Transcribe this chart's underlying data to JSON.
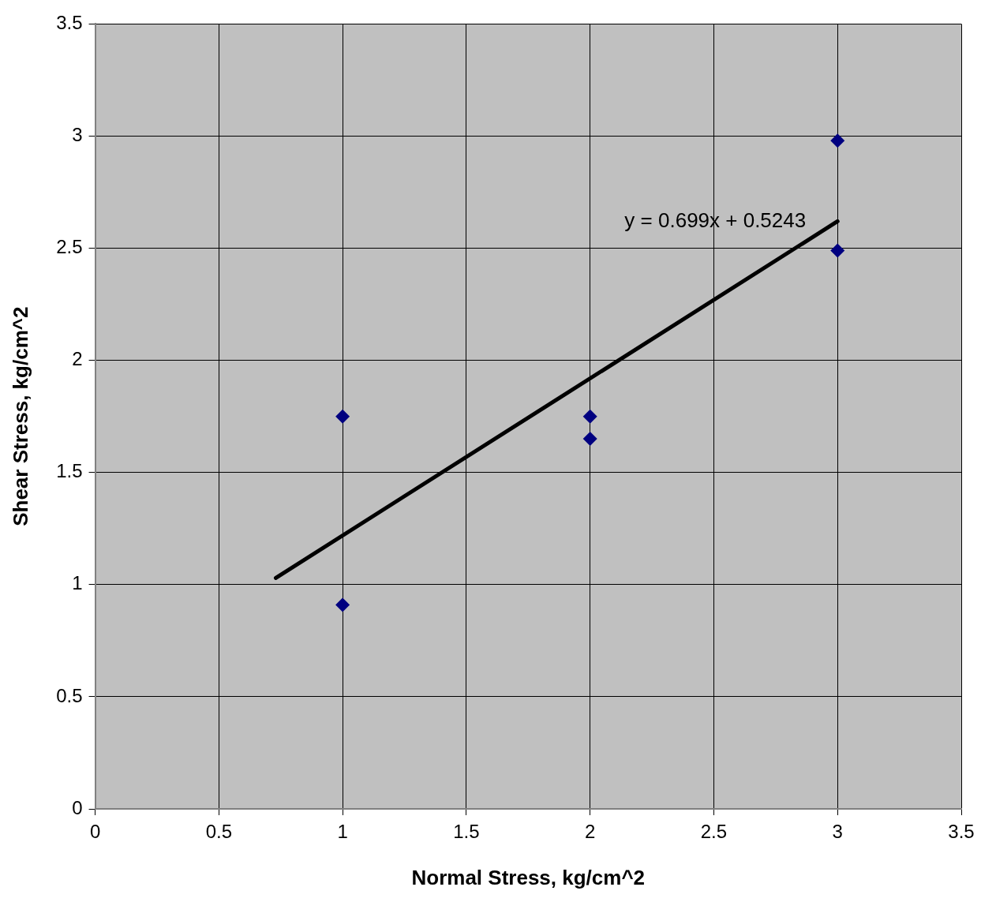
{
  "chart_data": {
    "type": "scatter",
    "xlabel": "Normal Stress, kg/cm^2",
    "ylabel": "Shear Stress, kg/cm^2",
    "series": [
      {
        "type": "scatter",
        "color": "#000080",
        "x": [
          1,
          1,
          2,
          2,
          3,
          3
        ],
        "values": [
          1.75,
          0.91,
          1.75,
          1.65,
          2.98,
          2.49
        ],
        "marker": "diamond"
      },
      {
        "type": "line",
        "color": "#000000",
        "x": [
          0.73,
          3
        ],
        "values": [
          1.03,
          2.62
        ],
        "marker": "none",
        "line_style": "solid"
      }
    ],
    "annotations": [
      "y = 0.699x + 0.5243"
    ],
    "xlim": [
      0,
      3.5
    ],
    "ylim": [
      0,
      3.5
    ],
    "xticks": [
      0,
      0.5,
      1,
      1.5,
      2,
      2.5,
      3,
      3.5
    ],
    "yticks": [
      0,
      0.5,
      1,
      1.5,
      2,
      2.5,
      3,
      3.5
    ],
    "grid": true,
    "legend": false
  }
}
